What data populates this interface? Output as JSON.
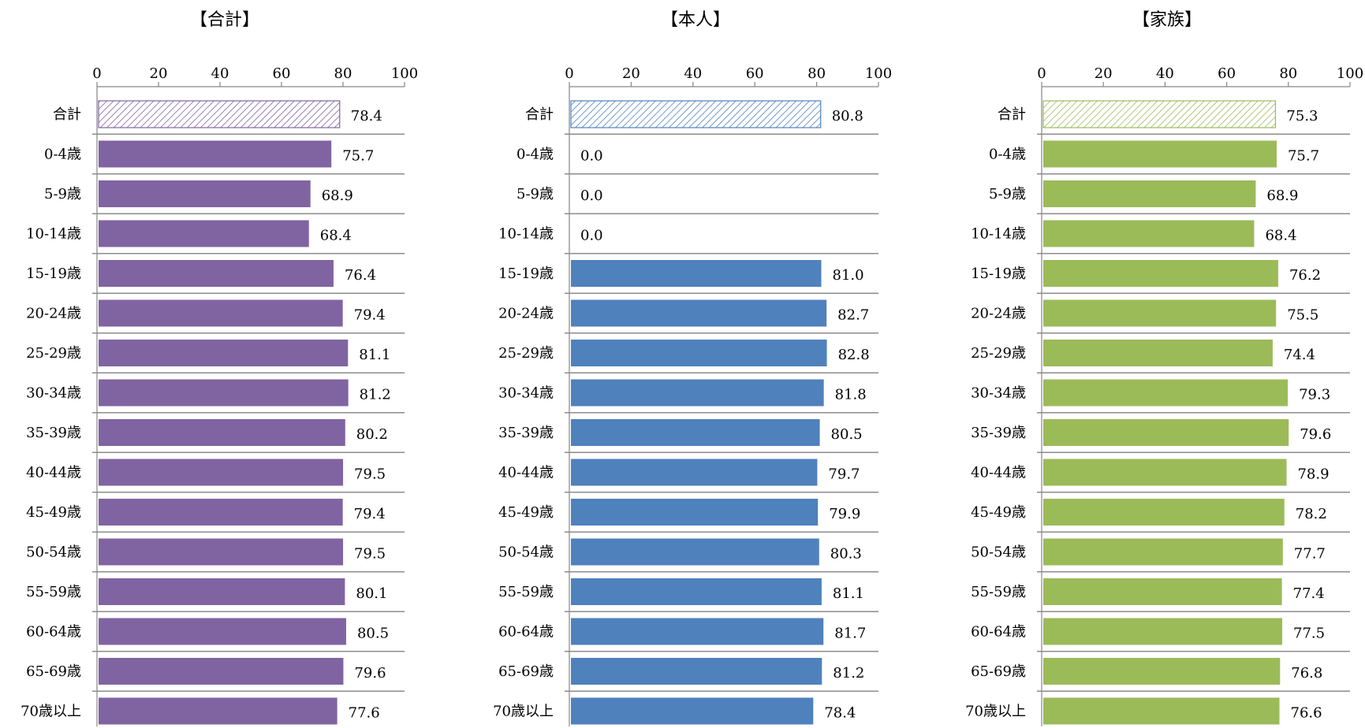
{
  "chart_data": [
    {
      "type": "bar",
      "orientation": "horizontal",
      "title": "【合計】",
      "categories": [
        "合計",
        "0-4歳",
        "5-9歳",
        "10-14歳",
        "15-19歳",
        "20-24歳",
        "25-29歳",
        "30-34歳",
        "35-39歳",
        "40-44歳",
        "45-49歳",
        "50-54歳",
        "55-59歳",
        "60-64歳",
        "65-69歳",
        "70歳以上"
      ],
      "values": [
        78.4,
        75.7,
        68.9,
        68.4,
        76.4,
        79.4,
        81.1,
        81.2,
        80.2,
        79.5,
        79.4,
        79.5,
        80.1,
        80.5,
        79.6,
        77.6
      ],
      "value_labels": [
        "78.4",
        "75.7",
        "68.9",
        "68.4",
        "76.4",
        "79.4",
        "81.1",
        "81.2",
        "80.2",
        "79.5",
        "79.4",
        "79.5",
        "80.1",
        "80.5",
        "79.6",
        "77.6"
      ],
      "xlim": [
        0,
        100
      ],
      "ticks": [
        0,
        20,
        40,
        60,
        80,
        100
      ],
      "tick_labels": [
        "0",
        "20",
        "40",
        "60",
        "80",
        "100"
      ],
      "axis_position": "top",
      "grid": false,
      "color": "#8064A2",
      "first_bar_style": "hatched"
    },
    {
      "type": "bar",
      "orientation": "horizontal",
      "title": "【本人】",
      "categories": [
        "合計",
        "0-4歳",
        "5-9歳",
        "10-14歳",
        "15-19歳",
        "20-24歳",
        "25-29歳",
        "30-34歳",
        "35-39歳",
        "40-44歳",
        "45-49歳",
        "50-54歳",
        "55-59歳",
        "60-64歳",
        "65-69歳",
        "70歳以上"
      ],
      "values": [
        80.8,
        0.0,
        0.0,
        0.0,
        81.0,
        82.7,
        82.8,
        81.8,
        80.5,
        79.7,
        79.9,
        80.3,
        81.1,
        81.7,
        81.2,
        78.4
      ],
      "value_labels": [
        "80.8",
        "0.0",
        "0.0",
        "0.0",
        "81.0",
        "82.7",
        "82.8",
        "81.8",
        "80.5",
        "79.7",
        "79.9",
        "80.3",
        "81.1",
        "81.7",
        "81.2",
        "78.4"
      ],
      "xlim": [
        0,
        100
      ],
      "ticks": [
        0,
        20,
        40,
        60,
        80,
        100
      ],
      "tick_labels": [
        "0",
        "20",
        "40",
        "60",
        "80",
        "100"
      ],
      "axis_position": "top",
      "grid": false,
      "color": "#4F81BD",
      "first_bar_style": "hatched"
    },
    {
      "type": "bar",
      "orientation": "horizontal",
      "title": "【家族】",
      "categories": [
        "合計",
        "0-4歳",
        "5-9歳",
        "10-14歳",
        "15-19歳",
        "20-24歳",
        "25-29歳",
        "30-34歳",
        "35-39歳",
        "40-44歳",
        "45-49歳",
        "50-54歳",
        "55-59歳",
        "60-64歳",
        "65-69歳",
        "70歳以上"
      ],
      "values": [
        75.3,
        75.7,
        68.9,
        68.4,
        76.2,
        75.5,
        74.4,
        79.3,
        79.6,
        78.9,
        78.2,
        77.7,
        77.4,
        77.5,
        76.8,
        76.6
      ],
      "value_labels": [
        "75.3",
        "75.7",
        "68.9",
        "68.4",
        "76.2",
        "75.5",
        "74.4",
        "79.3",
        "79.6",
        "78.9",
        "78.2",
        "77.7",
        "77.4",
        "77.5",
        "76.8",
        "76.6"
      ],
      "xlim": [
        0,
        100
      ],
      "ticks": [
        0,
        20,
        40,
        60,
        80,
        100
      ],
      "tick_labels": [
        "0",
        "20",
        "40",
        "60",
        "80",
        "100"
      ],
      "axis_position": "top",
      "grid": false,
      "color": "#9BBB59",
      "first_bar_style": "hatched"
    }
  ]
}
